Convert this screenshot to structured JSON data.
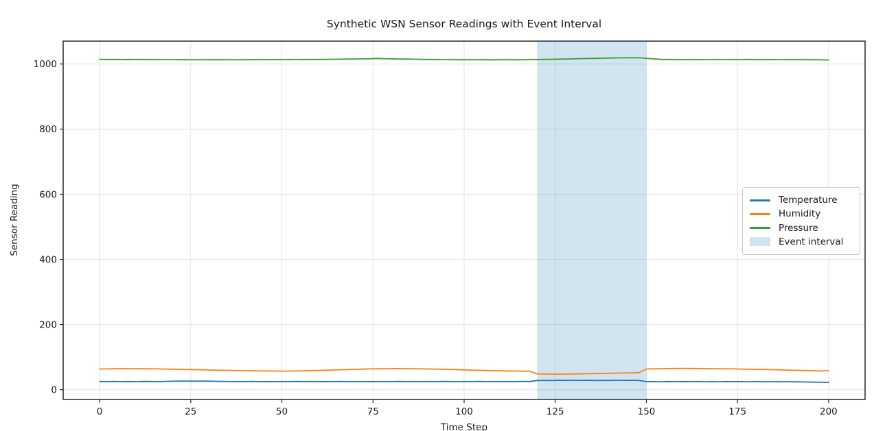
{
  "chart_data": {
    "type": "line",
    "title": "Synthetic WSN Sensor Readings with Event Interval",
    "xlabel": "Time Step",
    "ylabel": "Sensor Reading",
    "xlim": [
      -10,
      210
    ],
    "ylim": [
      -30,
      1070
    ],
    "x_ticks": [
      0,
      25,
      50,
      75,
      100,
      125,
      150,
      175,
      200
    ],
    "y_ticks": [
      0,
      200,
      400,
      600,
      800,
      1000
    ],
    "grid": true,
    "legend_position": "center right",
    "event_interval": {
      "label": "Event interval",
      "x_start": 120,
      "x_end": 150,
      "color": "#1f77b4",
      "alpha": 0.2
    },
    "x": [
      0,
      2,
      4,
      6,
      8,
      10,
      12,
      14,
      16,
      18,
      20,
      22,
      24,
      26,
      28,
      30,
      32,
      34,
      36,
      38,
      40,
      42,
      44,
      46,
      48,
      50,
      52,
      54,
      56,
      58,
      60,
      62,
      64,
      66,
      68,
      70,
      72,
      74,
      76,
      78,
      80,
      82,
      84,
      86,
      88,
      90,
      92,
      94,
      96,
      98,
      100,
      102,
      104,
      106,
      108,
      110,
      112,
      114,
      116,
      118,
      120,
      122,
      124,
      126,
      128,
      130,
      132,
      134,
      136,
      138,
      140,
      142,
      144,
      146,
      148,
      150,
      152,
      154,
      156,
      158,
      160,
      162,
      164,
      166,
      168,
      170,
      172,
      174,
      176,
      178,
      180,
      182,
      184,
      186,
      188,
      190,
      192,
      194,
      196,
      198,
      200
    ],
    "series": [
      {
        "name": "Temperature",
        "color": "#1f77b4",
        "values": [
          25.2,
          24.8,
          25.4,
          24.7,
          25.1,
          24.6,
          25.3,
          25.0,
          24.7,
          25.5,
          25.9,
          26.3,
          26.6,
          26.2,
          26.5,
          26.1,
          25.7,
          25.3,
          24.9,
          25.2,
          24.8,
          25.3,
          24.7,
          25.1,
          24.6,
          25.2,
          24.9,
          25.4,
          24.8,
          25.0,
          24.6,
          25.1,
          24.7,
          25.3,
          24.9,
          25.2,
          24.7,
          25.0,
          24.6,
          25.2,
          24.9,
          25.3,
          24.8,
          25.1,
          24.7,
          25.2,
          24.9,
          25.4,
          25.0,
          24.7,
          25.2,
          24.8,
          25.3,
          24.9,
          25.1,
          24.7,
          25.2,
          24.9,
          25.3,
          25.0,
          28.2,
          28.6,
          28.1,
          28.8,
          28.4,
          29.0,
          28.5,
          28.9,
          28.3,
          28.7,
          28.4,
          29.1,
          28.6,
          28.9,
          28.5,
          24.6,
          24.9,
          24.5,
          25.0,
          24.7,
          25.1,
          24.6,
          24.9,
          24.4,
          24.8,
          24.5,
          25.0,
          24.6,
          24.9,
          24.5,
          24.8,
          24.4,
          24.7,
          24.3,
          24.6,
          24.2,
          24.0,
          23.6,
          23.2,
          22.8,
          22.5
        ]
      },
      {
        "name": "Humidity",
        "color": "#ff7f0e",
        "values": [
          63.5,
          63.9,
          64.3,
          64.6,
          64.4,
          64.8,
          64.5,
          64.1,
          63.8,
          63.4,
          62.9,
          62.4,
          62.0,
          61.5,
          61.0,
          60.5,
          60.0,
          59.5,
          59.1,
          58.6,
          58.2,
          57.9,
          57.6,
          57.4,
          57.2,
          57.1,
          57.3,
          57.6,
          58.0,
          58.5,
          59.1,
          59.8,
          60.5,
          61.2,
          61.9,
          62.6,
          63.2,
          63.8,
          64.2,
          64.5,
          64.7,
          64.8,
          64.7,
          64.4,
          64.1,
          63.7,
          63.2,
          62.7,
          62.1,
          61.5,
          60.9,
          60.3,
          59.6,
          59.0,
          58.4,
          57.9,
          57.5,
          57.2,
          57.0,
          56.8,
          48.6,
          48.2,
          47.9,
          47.8,
          48.0,
          48.3,
          48.7,
          49.1,
          49.5,
          49.9,
          50.4,
          50.9,
          51.4,
          51.9,
          52.4,
          63.6,
          64.1,
          64.5,
          64.9,
          65.1,
          65.2,
          65.1,
          65.0,
          64.9,
          64.7,
          64.4,
          64.1,
          63.8,
          63.4,
          63.0,
          62.6,
          62.1,
          61.6,
          61.1,
          60.5,
          59.9,
          59.3,
          58.7,
          58.1,
          57.6,
          58.3
        ]
      },
      {
        "name": "Pressure",
        "color": "#2ca02c",
        "values": [
          1013.9,
          1013.5,
          1013.8,
          1013.3,
          1013.6,
          1013.2,
          1013.5,
          1013.0,
          1013.3,
          1012.9,
          1013.1,
          1012.7,
          1013.0,
          1012.6,
          1012.9,
          1012.5,
          1012.8,
          1012.5,
          1012.9,
          1012.6,
          1013.0,
          1012.7,
          1013.1,
          1012.8,
          1013.2,
          1013.0,
          1013.4,
          1013.1,
          1013.5,
          1013.3,
          1013.7,
          1013.9,
          1014.2,
          1014.5,
          1014.8,
          1015.1,
          1015.5,
          1015.8,
          1016.8,
          1015.9,
          1015.6,
          1015.2,
          1014.8,
          1014.4,
          1014.1,
          1013.7,
          1013.4,
          1013.1,
          1012.9,
          1012.8,
          1012.7,
          1012.9,
          1012.6,
          1012.8,
          1012.5,
          1012.7,
          1012.9,
          1012.6,
          1012.8,
          1013.0,
          1013.4,
          1013.8,
          1014.2,
          1014.7,
          1015.1,
          1015.6,
          1016.1,
          1016.6,
          1017.1,
          1017.5,
          1018.0,
          1018.4,
          1018.7,
          1018.9,
          1018.6,
          1017.2,
          1015.4,
          1013.9,
          1013.2,
          1012.9,
          1012.7,
          1013.0,
          1012.8,
          1013.1,
          1012.9,
          1013.2,
          1012.9,
          1013.3,
          1013.0,
          1013.4,
          1013.1,
          1012.8,
          1013.2,
          1012.9,
          1013.1,
          1012.8,
          1013.0,
          1012.7,
          1012.9,
          1012.5,
          1012.2
        ]
      }
    ]
  },
  "legend": {
    "items": [
      {
        "label": "Temperature",
        "color": "#1f77b4",
        "swatch": "line"
      },
      {
        "label": "Humidity",
        "color": "#ff7f0e",
        "swatch": "line"
      },
      {
        "label": "Pressure",
        "color": "#2ca02c",
        "swatch": "line"
      },
      {
        "label": "Event interval",
        "color": "#d2e4f0",
        "swatch": "patch"
      }
    ]
  },
  "colors": {
    "grid": "#e3e3e3",
    "spine": "#262626",
    "text": "#1a1a1a",
    "background": "#ffffff"
  }
}
